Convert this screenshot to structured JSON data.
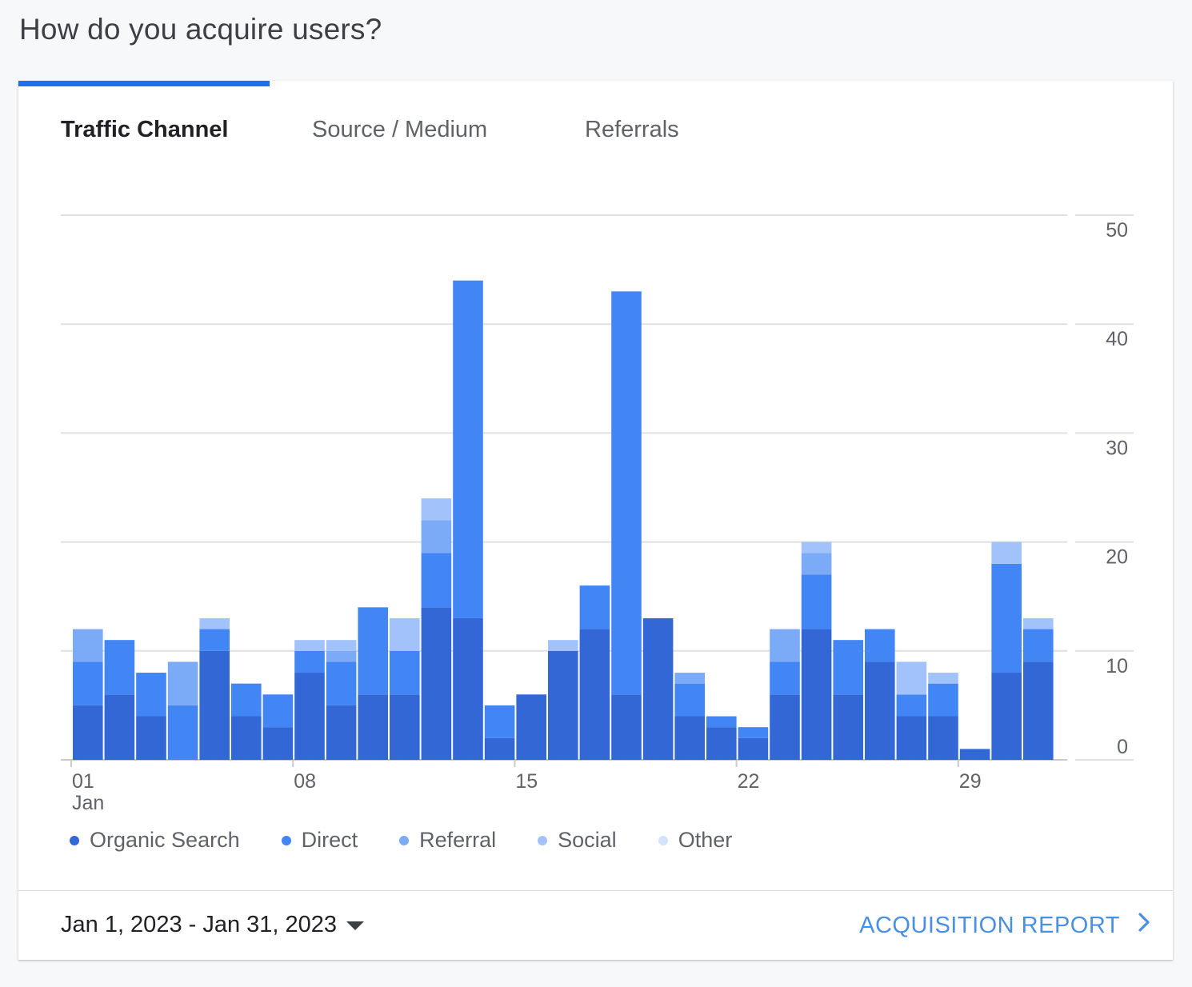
{
  "page": {
    "title": "How do you acquire users?"
  },
  "tabs": [
    {
      "label": "Traffic Channel",
      "active": true
    },
    {
      "label": "Source / Medium",
      "active": false
    },
    {
      "label": "Referrals",
      "active": false
    }
  ],
  "footer": {
    "date_range": "Jan 1, 2023 - Jan 31, 2023",
    "report_link": "ACQUISITION REPORT"
  },
  "icons": {
    "date_dropdown": "caret-down-icon",
    "report_link": "chevron-right-icon"
  },
  "chart_data": {
    "type": "bar",
    "stacked": true,
    "categories": [
      1,
      2,
      3,
      4,
      5,
      6,
      7,
      8,
      9,
      10,
      11,
      12,
      13,
      14,
      15,
      16,
      17,
      18,
      19,
      20,
      21,
      22,
      23,
      24,
      25,
      26,
      27,
      28,
      29,
      30,
      31
    ],
    "x_tick_labels": [
      {
        "day": 1,
        "label": "01",
        "sublabel": "Jan"
      },
      {
        "day": 8,
        "label": "08"
      },
      {
        "day": 15,
        "label": "15"
      },
      {
        "day": 22,
        "label": "22"
      },
      {
        "day": 29,
        "label": "29"
      }
    ],
    "y_ticks": [
      0,
      10,
      20,
      30,
      40,
      50
    ],
    "ylim": [
      0,
      50
    ],
    "grid": true,
    "y_axis_position": "right",
    "legend_position": "bottom-left",
    "series": [
      {
        "name": "Organic Search",
        "color": "#3367d6",
        "values": [
          5,
          6,
          4,
          0,
          10,
          4,
          3,
          8,
          5,
          6,
          6,
          14,
          13,
          2,
          6,
          10,
          12,
          6,
          13,
          4,
          3,
          2,
          6,
          12,
          6,
          9,
          4,
          4,
          1,
          8,
          9
        ]
      },
      {
        "name": "Direct",
        "color": "#4285f4",
        "values": [
          4,
          5,
          4,
          5,
          2,
          3,
          3,
          2,
          4,
          8,
          4,
          5,
          31,
          3,
          0,
          0,
          4,
          37,
          0,
          3,
          1,
          1,
          3,
          5,
          5,
          3,
          2,
          3,
          0,
          10,
          3
        ]
      },
      {
        "name": "Referral",
        "color": "#7baaf7",
        "values": [
          3,
          0,
          0,
          4,
          0,
          0,
          0,
          0,
          1,
          0,
          0,
          3,
          0,
          0,
          0,
          0,
          0,
          0,
          0,
          1,
          0,
          0,
          3,
          2,
          0,
          0,
          0,
          0,
          0,
          0,
          0
        ]
      },
      {
        "name": "Social",
        "color": "#a1c2fa",
        "values": [
          0,
          0,
          0,
          0,
          1,
          0,
          0,
          1,
          1,
          0,
          3,
          2,
          0,
          0,
          0,
          1,
          0,
          0,
          0,
          0,
          0,
          0,
          0,
          1,
          0,
          0,
          3,
          1,
          0,
          2,
          1
        ]
      },
      {
        "name": "Other",
        "color": "#d2e3fc",
        "values": [
          0,
          0,
          0,
          0,
          0,
          0,
          0,
          0,
          0,
          0,
          0,
          0,
          0,
          0,
          0,
          0,
          0,
          0,
          0,
          0,
          0,
          0,
          0,
          0,
          0,
          0,
          0,
          0,
          0,
          0,
          0
        ]
      }
    ]
  }
}
